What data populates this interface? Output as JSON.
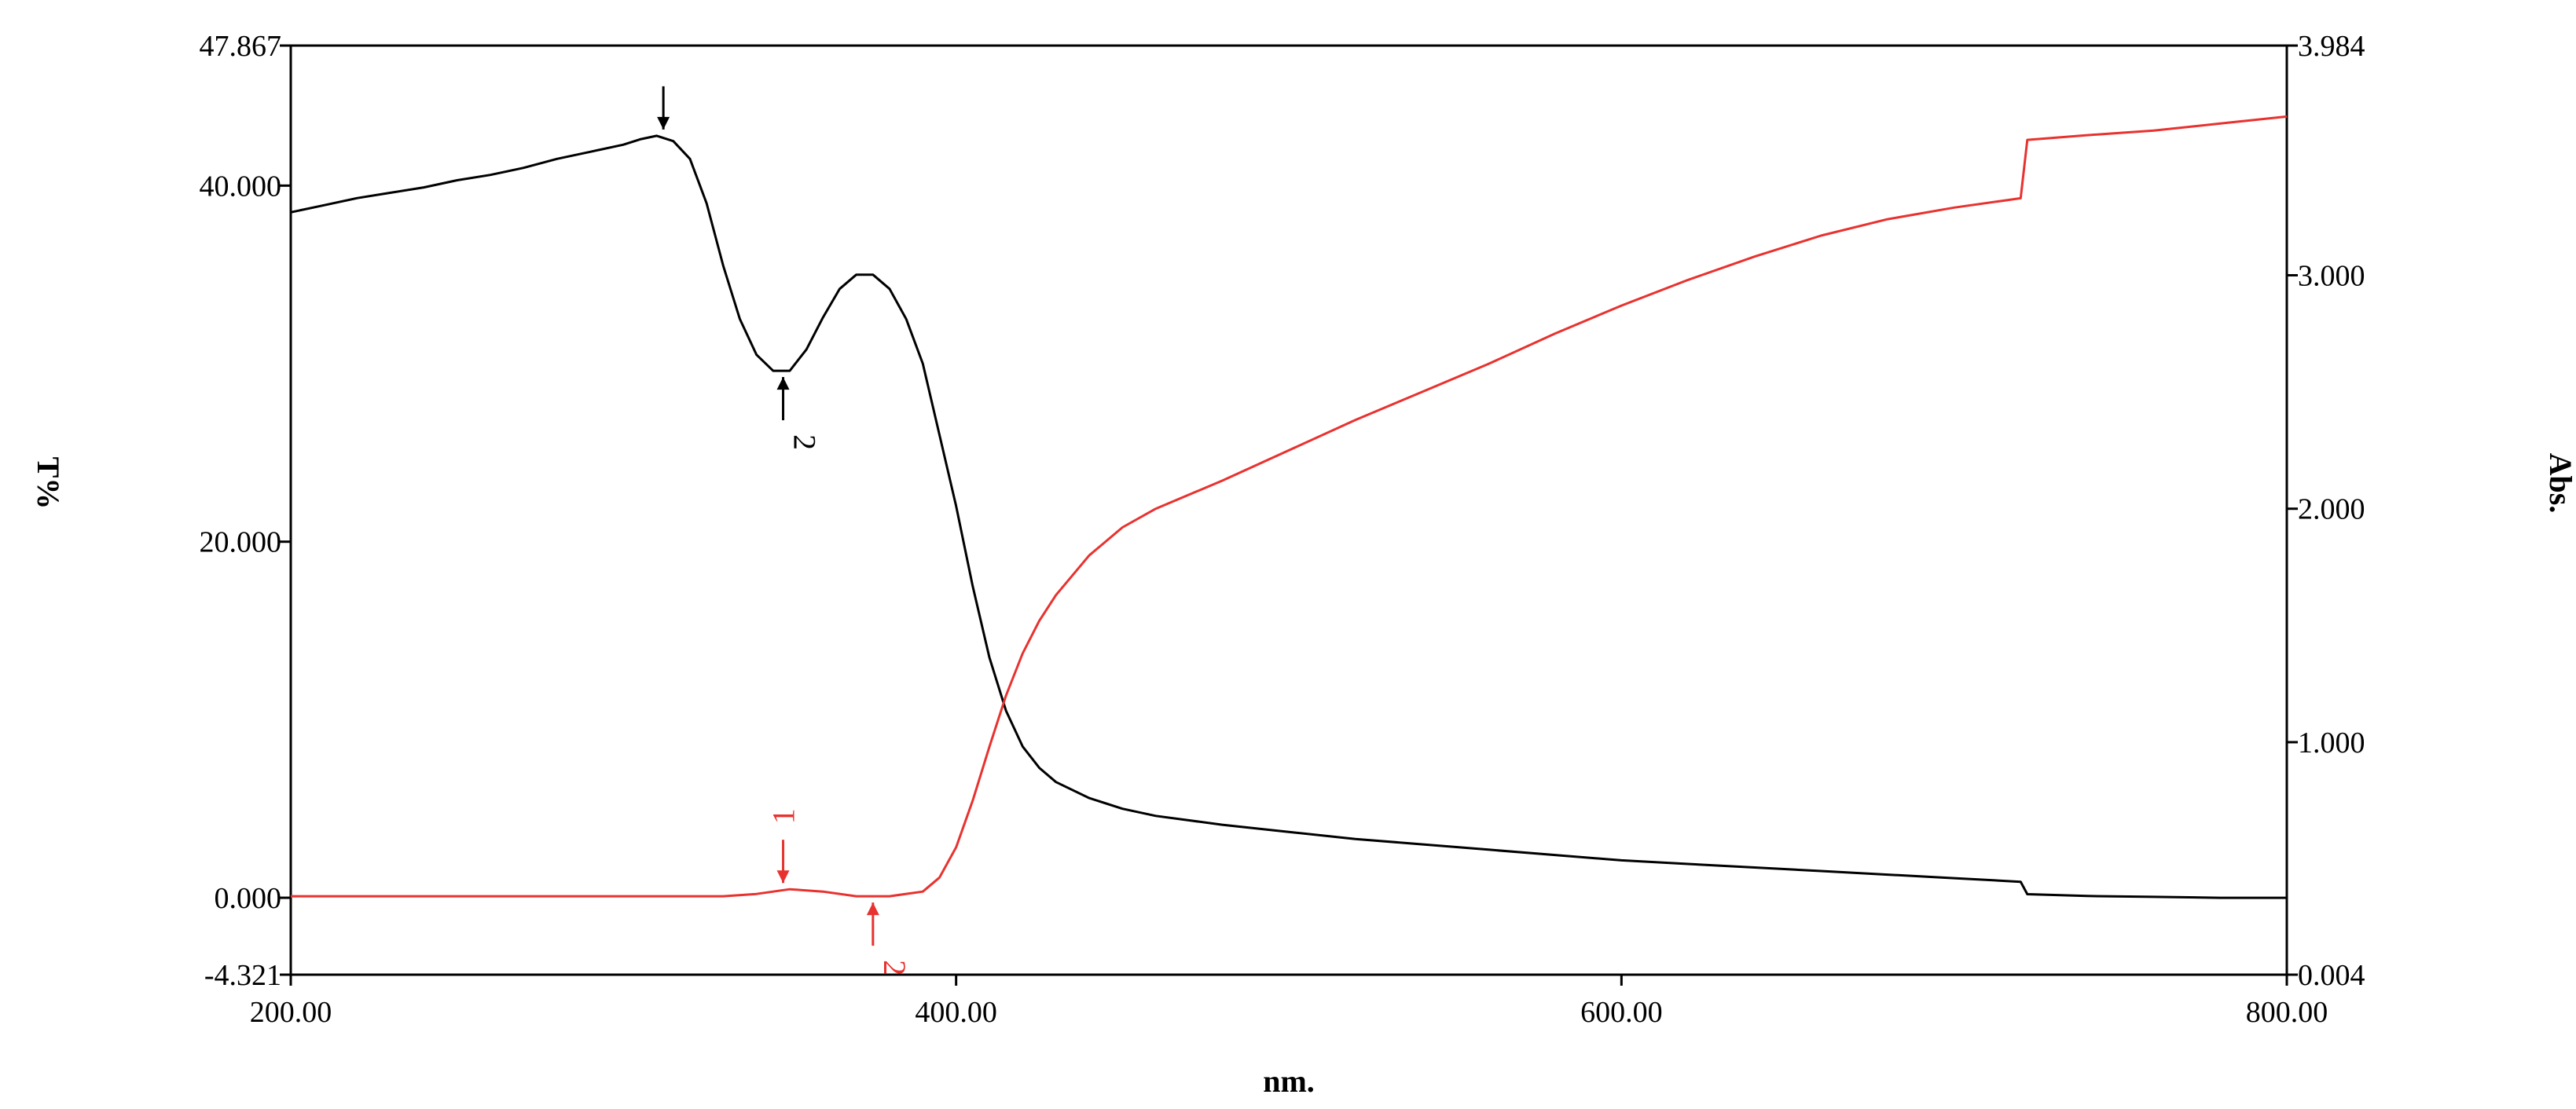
{
  "chart_data": {
    "type": "line",
    "x_axis": {
      "label": "nm.",
      "range": [
        200,
        800
      ],
      "ticks": [
        200,
        400,
        600,
        800
      ],
      "tick_labels": [
        "200.00",
        "400.00",
        "600.00",
        "800.00"
      ]
    },
    "y_left": {
      "label": "T%",
      "range": [
        -4.321,
        47.867
      ],
      "ticks": [
        -4.321,
        0,
        20,
        40,
        47.867
      ],
      "tick_labels": [
        "-4.321",
        "0.000",
        "20.000",
        "40.000",
        "47.867"
      ]
    },
    "y_right": {
      "label": "Abs.",
      "range": [
        0.004,
        3.984
      ],
      "ticks": [
        0.004,
        1,
        2,
        3,
        3.984
      ],
      "tick_labels": [
        "0.004",
        "1.000",
        "2.000",
        "3.000",
        "3.984"
      ]
    },
    "grid": false,
    "series": [
      {
        "color": "#000000",
        "axis": "left",
        "x": [
          200,
          210,
          220,
          230,
          240,
          250,
          260,
          270,
          280,
          290,
          300,
          305,
          310,
          315,
          320,
          325,
          330,
          335,
          340,
          345,
          350,
          355,
          360,
          365,
          370,
          375,
          380,
          385,
          390,
          395,
          400,
          405,
          410,
          415,
          420,
          425,
          430,
          440,
          450,
          460,
          480,
          500,
          520,
          540,
          560,
          580,
          600,
          620,
          640,
          660,
          680,
          700,
          720,
          722,
          740,
          760,
          780,
          800
        ],
        "y": [
          38.5,
          38.9,
          39.3,
          39.6,
          39.9,
          40.3,
          40.6,
          41.0,
          41.5,
          41.9,
          42.3,
          42.6,
          42.8,
          42.5,
          41.5,
          39.0,
          35.5,
          32.5,
          30.5,
          29.6,
          29.6,
          30.8,
          32.6,
          34.2,
          35.0,
          35.0,
          34.2,
          32.5,
          30.0,
          26.0,
          22.0,
          17.5,
          13.5,
          10.5,
          8.5,
          7.3,
          6.5,
          5.6,
          5.0,
          4.6,
          4.1,
          3.7,
          3.3,
          3.0,
          2.7,
          2.4,
          2.1,
          1.9,
          1.7,
          1.5,
          1.3,
          1.1,
          0.9,
          0.2,
          0.1,
          0.05,
          0.0,
          0.0
        ]
      },
      {
        "color": "#e8322f",
        "axis": "right",
        "x": [
          200,
          300,
          330,
          340,
          350,
          360,
          370,
          380,
          390,
          395,
          400,
          405,
          410,
          415,
          420,
          425,
          430,
          440,
          450,
          460,
          480,
          500,
          520,
          540,
          560,
          580,
          600,
          620,
          640,
          660,
          680,
          700,
          720,
          722,
          740,
          760,
          780,
          800
        ],
        "y": [
          0.34,
          0.34,
          0.34,
          0.35,
          0.37,
          0.36,
          0.34,
          0.34,
          0.36,
          0.42,
          0.55,
          0.75,
          0.98,
          1.2,
          1.38,
          1.52,
          1.63,
          1.8,
          1.92,
          2.0,
          2.12,
          2.25,
          2.38,
          2.5,
          2.62,
          2.75,
          2.87,
          2.98,
          3.08,
          3.17,
          3.24,
          3.29,
          3.33,
          3.58,
          3.6,
          3.62,
          3.65,
          3.68
        ]
      }
    ],
    "annotations": [
      {
        "label": "",
        "series": 0,
        "x": 312,
        "y": 42.8,
        "color": "#000000",
        "direction": "down",
        "label_side": "above"
      },
      {
        "label": "2",
        "series": 0,
        "x": 348,
        "y": 29.6,
        "color": "#000000",
        "direction": "up",
        "label_side": "below"
      },
      {
        "label": "1",
        "series": 1,
        "x": 348,
        "y": 0.37,
        "color": "#e8322f",
        "direction": "down",
        "label_side": "above"
      },
      {
        "label": "2",
        "series": 1,
        "x": 375,
        "y": 0.34,
        "color": "#e8322f",
        "direction": "up",
        "label_side": "below"
      }
    ]
  }
}
